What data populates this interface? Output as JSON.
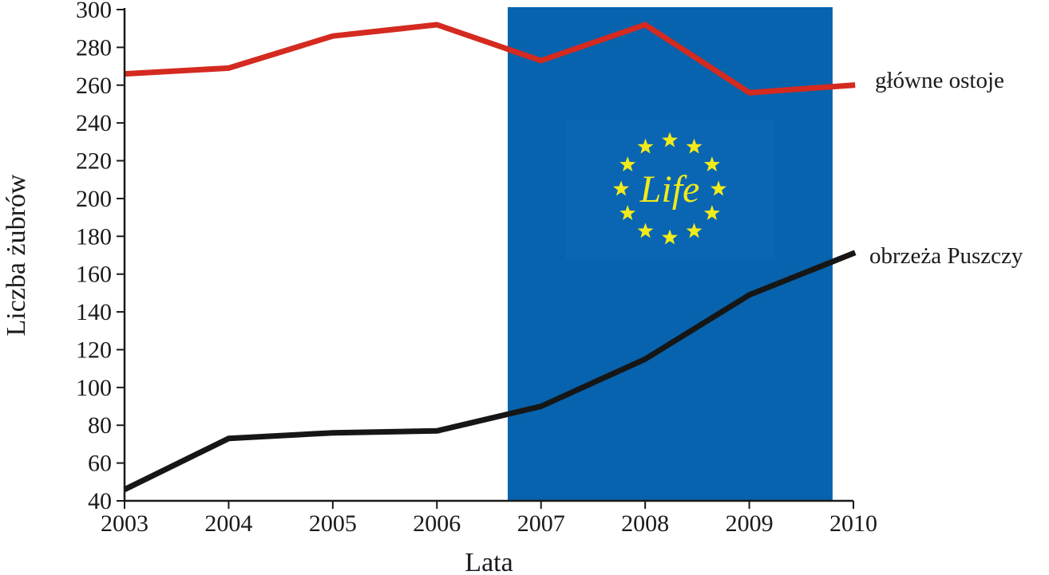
{
  "chart_data": {
    "type": "line",
    "xlabel": "Lata",
    "ylabel": "Liczba żubrów",
    "x": [
      2003,
      2004,
      2005,
      2006,
      2007,
      2008,
      2009,
      2010
    ],
    "xlim": [
      2003,
      2010
    ],
    "ylim": [
      40,
      300
    ],
    "yticks": [
      40,
      60,
      80,
      100,
      120,
      140,
      160,
      180,
      200,
      220,
      240,
      260,
      280,
      300
    ],
    "grid": false,
    "series": [
      {
        "name": "główne ostoje",
        "values": [
          266,
          269,
          286,
          292,
          273,
          292,
          256,
          260
        ],
        "color": "#d42a20"
      },
      {
        "name": "obrzeża Puszczy",
        "values": [
          46,
          73,
          76,
          77,
          90,
          115,
          149,
          171
        ],
        "color": "#161616"
      }
    ],
    "highlight_span": {
      "from": 2006.68,
      "to": 2009.8,
      "color": "#0763ad",
      "logo_text": "Life",
      "logo_star_color": "#f2ea1a"
    }
  }
}
